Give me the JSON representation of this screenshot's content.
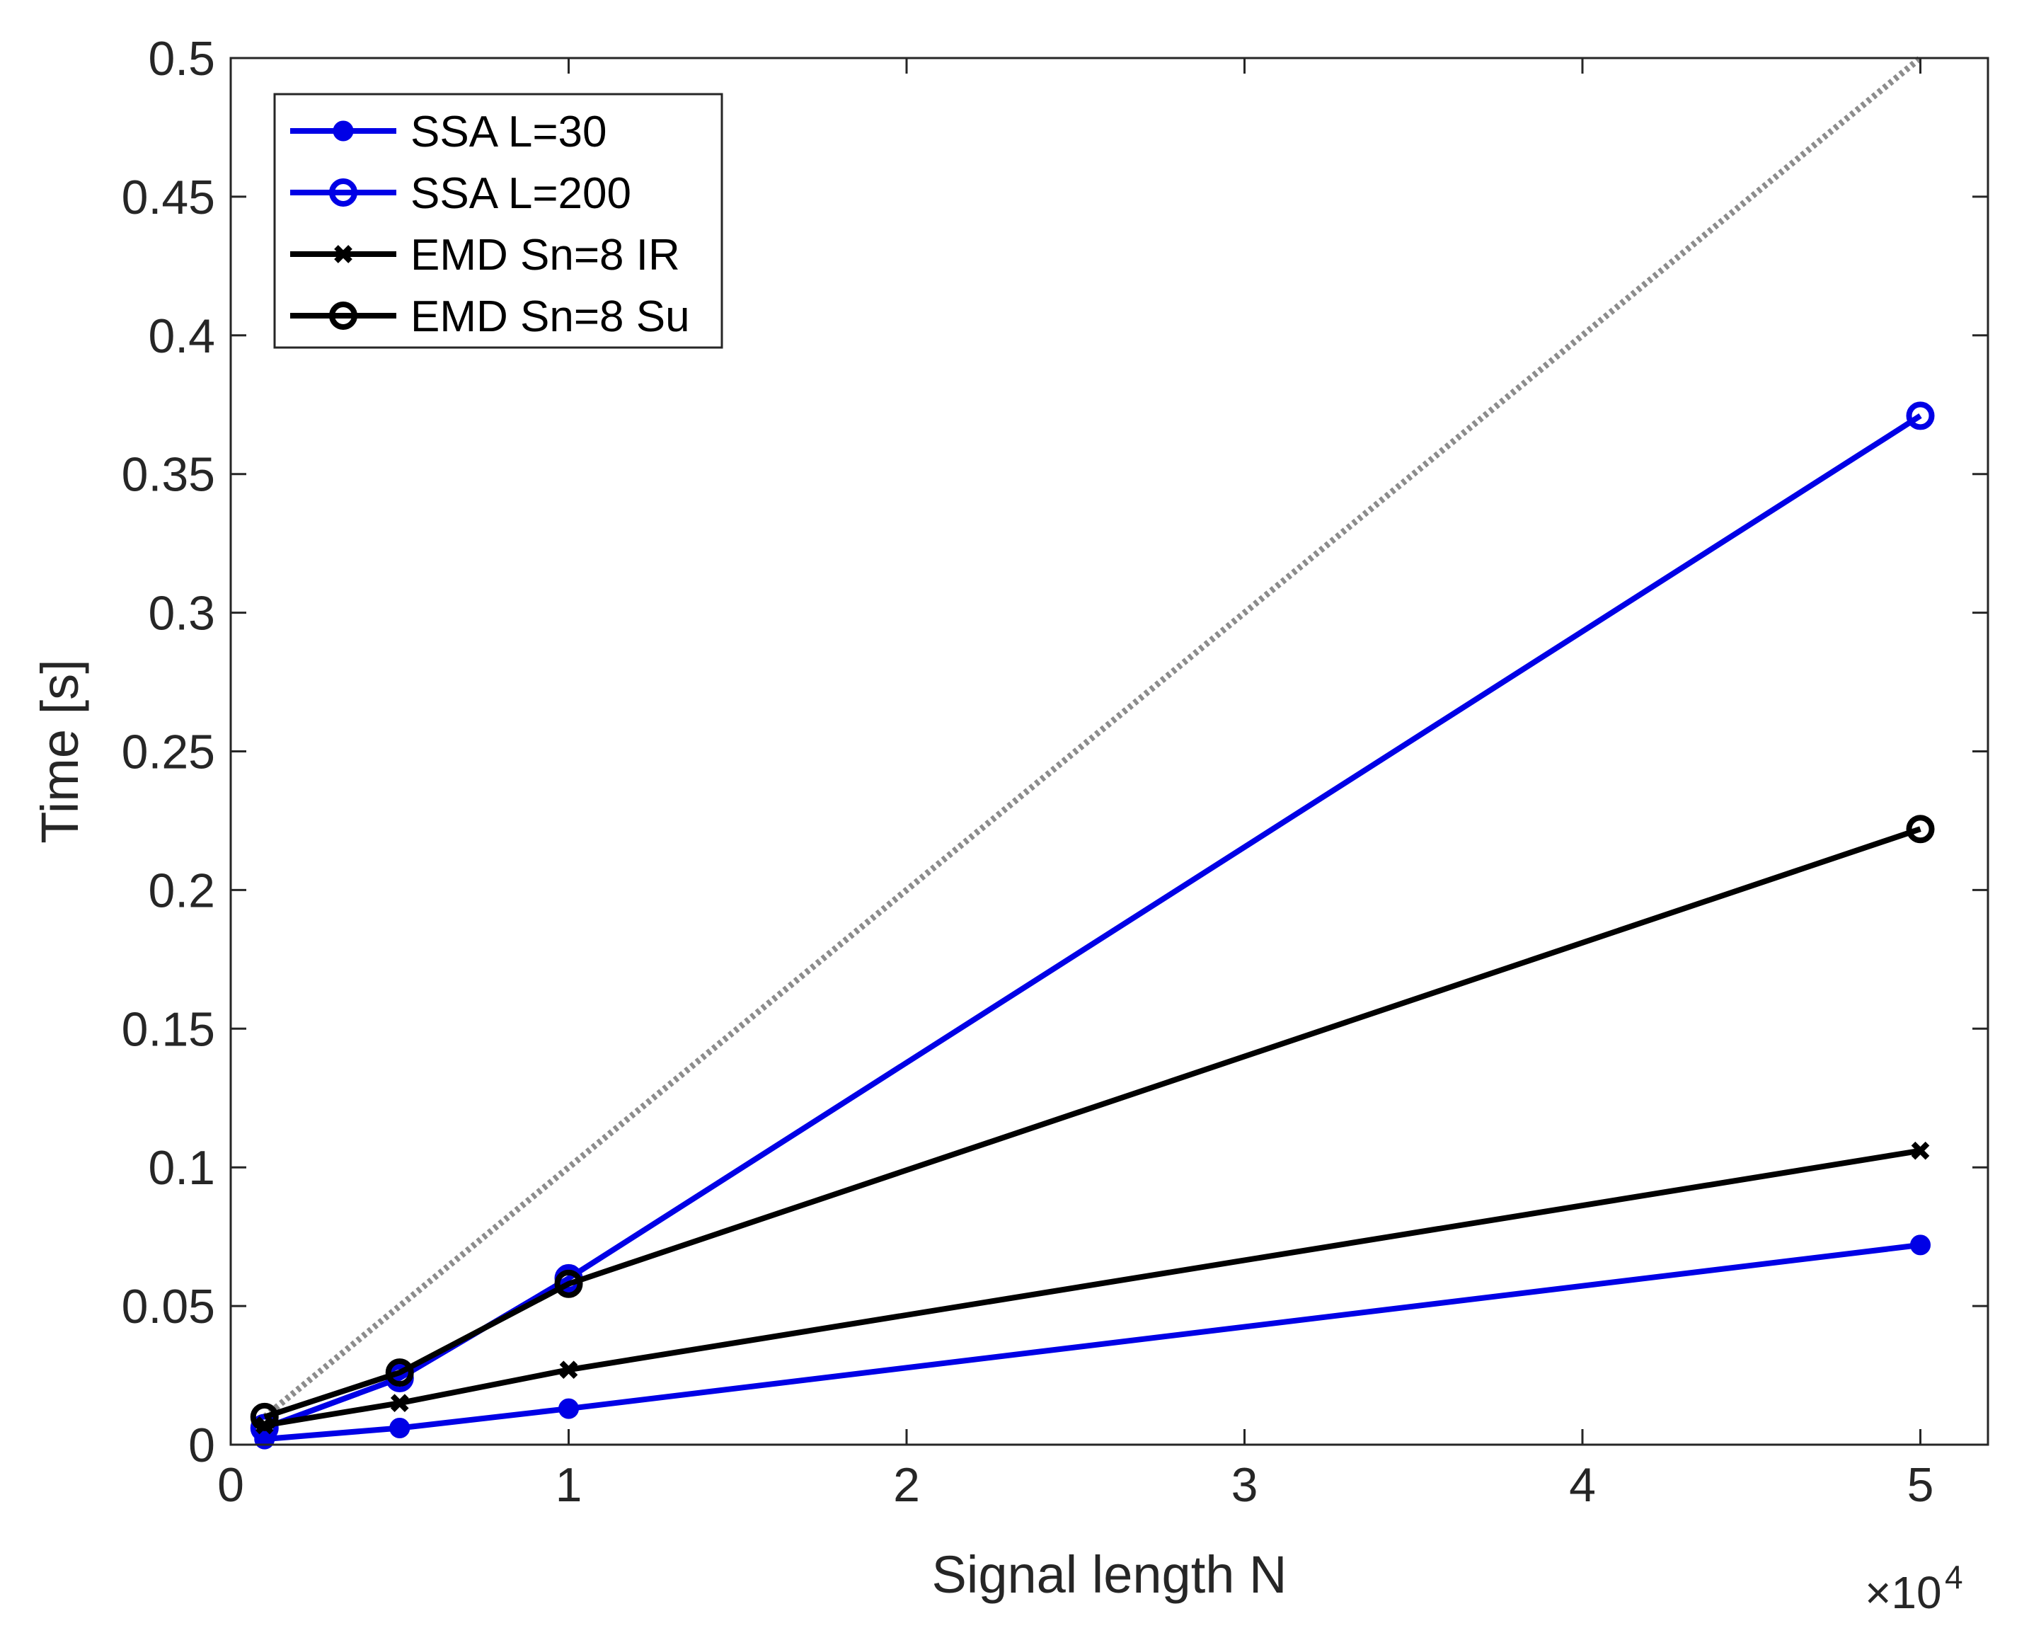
{
  "chart_data": {
    "type": "line",
    "title": "",
    "xlabel": "Signal length N",
    "ylabel": "Time [s]",
    "x_multiplier": {
      "base": "×10",
      "exponent": "4"
    },
    "xlim": [
      0,
      5.2
    ],
    "ylim": [
      0,
      0.5
    ],
    "xticks": [
      0,
      1,
      2,
      3,
      4,
      5
    ],
    "xtick_labels": [
      "0",
      "1",
      "2",
      "3",
      "4",
      "5"
    ],
    "yticks": [
      0,
      0.05,
      0.1,
      0.15,
      0.2,
      0.25,
      0.3,
      0.35,
      0.4,
      0.45,
      0.5
    ],
    "ytick_labels": [
      "0",
      "0.05",
      "0.1",
      "0.15",
      "0.2",
      "0.25",
      "0.3",
      "0.35",
      "0.4",
      "0.45",
      "0.5"
    ],
    "grid": false,
    "legend_position": "top-left",
    "reference_line": {
      "name": "reference",
      "x": [
        0.1,
        5
      ],
      "y": [
        0.01,
        0.5
      ],
      "color": "#8c8c8c",
      "style": "dotted"
    },
    "series": [
      {
        "name": "SSA L=30",
        "x": [
          0.1,
          0.5,
          1,
          5
        ],
        "y": [
          0.002,
          0.006,
          0.013,
          0.072
        ],
        "color": "#0000e6",
        "marker": "filled-circle"
      },
      {
        "name": "SSA L=200",
        "x": [
          0.1,
          0.5,
          1,
          5
        ],
        "y": [
          0.006,
          0.024,
          0.06,
          0.371
        ],
        "color": "#0000e6",
        "marker": "open-circle"
      },
      {
        "name": "EMD Sn=8 IR",
        "x": [
          0.1,
          0.5,
          1,
          5
        ],
        "y": [
          0.007,
          0.015,
          0.027,
          0.106
        ],
        "color": "#000000",
        "marker": "x"
      },
      {
        "name": "EMD Sn=8 Su",
        "x": [
          0.1,
          0.5,
          1,
          5
        ],
        "y": [
          0.01,
          0.026,
          0.058,
          0.222
        ],
        "color": "#000000",
        "marker": "open-circle"
      }
    ]
  }
}
